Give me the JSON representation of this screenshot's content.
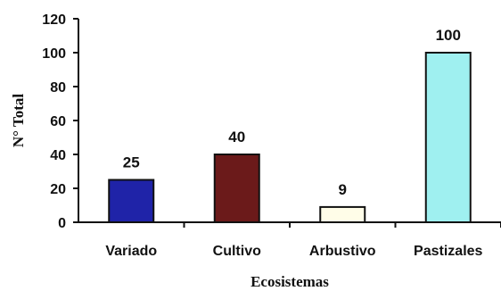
{
  "chart_data": {
    "type": "bar",
    "categories": [
      "Variado",
      "Cultivo",
      "Arbustivo",
      "Pastizales"
    ],
    "values": [
      25,
      40,
      9,
      100
    ],
    "data_labels": [
      "25",
      "40",
      "9",
      "100"
    ],
    "xlabel": "Ecosistemas",
    "ylabel": "N° Total",
    "ylim": [
      0,
      120
    ],
    "yticks": [
      0,
      20,
      40,
      60,
      80,
      100,
      120
    ],
    "ytick_labels": [
      "0",
      "20",
      "40",
      "60",
      "80",
      "100",
      "120"
    ],
    "grid": false,
    "bar_colors": [
      "#1f23a8",
      "#6b1a1a",
      "#fffde8",
      "#9ff0f0"
    ],
    "bar_edge_color": "#111111"
  }
}
